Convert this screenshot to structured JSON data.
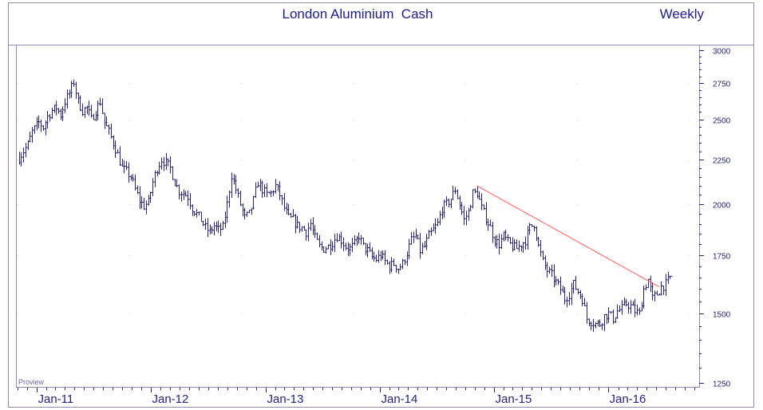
{
  "chart_data": {
    "type": "ohlc",
    "title": "London Aluminium  Cash",
    "period_label": "Weekly",
    "watermark": "Proview",
    "x_tick_labels": [
      "Jan-11",
      "Jan-12",
      "Jan-13",
      "Jan-14",
      "Jan-15",
      "Jan-16"
    ],
    "y_tick_labels": [
      "3000",
      "2750",
      "2500",
      "2250",
      "2000",
      "1750",
      "1500",
      "1250"
    ],
    "y_ticks": [
      3000,
      2750,
      2500,
      2250,
      2000,
      1750,
      1500,
      1250
    ],
    "ylim": [
      1250,
      3000
    ],
    "x_range": [
      "2010-11",
      "2016-06"
    ],
    "y_scale": "log",
    "grid": "dotted",
    "colors": {
      "bars": "#24247a",
      "text": "#1c1c8a",
      "frame": "#8a8ab8",
      "trendline": "#ff5a5a"
    },
    "price_series": [
      [
        "2010-11-05",
        2260
      ],
      [
        "2010-11-19",
        2300
      ],
      [
        "2010-12-03",
        2340
      ],
      [
        "2010-12-17",
        2420
      ],
      [
        "2011-01-07",
        2480
      ],
      [
        "2011-01-21",
        2450
      ],
      [
        "2011-02-04",
        2520
      ],
      [
        "2011-02-18",
        2560
      ],
      [
        "2011-03-04",
        2580
      ],
      [
        "2011-03-18",
        2530
      ],
      [
        "2011-04-01",
        2620
      ],
      [
        "2011-04-15",
        2680
      ],
      [
        "2011-04-29",
        2760
      ],
      [
        "2011-05-13",
        2620
      ],
      [
        "2011-05-27",
        2560
      ],
      [
        "2011-06-10",
        2580
      ],
      [
        "2011-06-24",
        2500
      ],
      [
        "2011-07-08",
        2560
      ],
      [
        "2011-07-22",
        2620
      ],
      [
        "2011-08-05",
        2480
      ],
      [
        "2011-08-19",
        2420
      ],
      [
        "2011-09-02",
        2350
      ],
      [
        "2011-09-16",
        2280
      ],
      [
        "2011-09-30",
        2200
      ],
      [
        "2011-10-14",
        2180
      ],
      [
        "2011-10-28",
        2150
      ],
      [
        "2011-11-11",
        2080
      ],
      [
        "2011-11-25",
        2020
      ],
      [
        "2011-12-09",
        1990
      ],
      [
        "2011-12-23",
        2010
      ],
      [
        "2012-01-06",
        2120
      ],
      [
        "2012-01-20",
        2200
      ],
      [
        "2012-02-03",
        2250
      ],
      [
        "2012-02-17",
        2230
      ],
      [
        "2012-03-02",
        2200
      ],
      [
        "2012-03-16",
        2120
      ],
      [
        "2012-03-30",
        2070
      ],
      [
        "2012-04-13",
        2060
      ],
      [
        "2012-04-27",
        2040
      ],
      [
        "2012-05-11",
        1980
      ],
      [
        "2012-05-25",
        1950
      ],
      [
        "2012-06-08",
        1920
      ],
      [
        "2012-06-22",
        1880
      ],
      [
        "2012-07-06",
        1860
      ],
      [
        "2012-07-20",
        1890
      ],
      [
        "2012-08-03",
        1870
      ],
      [
        "2012-08-17",
        1880
      ],
      [
        "2012-08-31",
        2000
      ],
      [
        "2012-09-14",
        2160
      ],
      [
        "2012-09-28",
        2080
      ],
      [
        "2012-10-12",
        2000
      ],
      [
        "2012-10-26",
        1930
      ],
      [
        "2012-11-09",
        1950
      ],
      [
        "2012-11-23",
        2020
      ],
      [
        "2012-12-07",
        2120
      ],
      [
        "2012-12-21",
        2080
      ],
      [
        "2013-01-04",
        2050
      ],
      [
        "2013-01-18",
        2060
      ],
      [
        "2013-02-01",
        2100
      ],
      [
        "2013-02-15",
        2050
      ],
      [
        "2013-03-01",
        1980
      ],
      [
        "2013-03-15",
        1930
      ],
      [
        "2013-03-29",
        1920
      ],
      [
        "2013-04-12",
        1890
      ],
      [
        "2013-04-26",
        1880
      ],
      [
        "2013-05-10",
        1860
      ],
      [
        "2013-05-24",
        1900
      ],
      [
        "2013-06-07",
        1830
      ],
      [
        "2013-06-21",
        1790
      ],
      [
        "2013-07-05",
        1780
      ],
      [
        "2013-07-19",
        1790
      ],
      [
        "2013-08-02",
        1810
      ],
      [
        "2013-08-16",
        1840
      ],
      [
        "2013-08-30",
        1820
      ],
      [
        "2013-09-13",
        1790
      ],
      [
        "2013-09-27",
        1780
      ],
      [
        "2013-10-11",
        1800
      ],
      [
        "2013-10-25",
        1840
      ],
      [
        "2013-11-08",
        1790
      ],
      [
        "2013-11-22",
        1770
      ],
      [
        "2013-12-06",
        1740
      ],
      [
        "2013-12-20",
        1730
      ],
      [
        "2014-01-03",
        1750
      ],
      [
        "2014-01-17",
        1720
      ],
      [
        "2014-01-31",
        1700
      ],
      [
        "2014-02-14",
        1710
      ],
      [
        "2014-02-28",
        1690
      ],
      [
        "2014-03-14",
        1710
      ],
      [
        "2014-03-28",
        1760
      ],
      [
        "2014-04-11",
        1820
      ],
      [
        "2014-04-25",
        1840
      ],
      [
        "2014-05-09",
        1770
      ],
      [
        "2014-05-23",
        1790
      ],
      [
        "2014-06-06",
        1840
      ],
      [
        "2014-06-20",
        1870
      ],
      [
        "2014-07-04",
        1900
      ],
      [
        "2014-07-18",
        1980
      ],
      [
        "2014-08-01",
        2000
      ],
      [
        "2014-08-15",
        2030
      ],
      [
        "2014-08-29",
        2080
      ],
      [
        "2014-09-12",
        2000
      ],
      [
        "2014-09-26",
        1920
      ],
      [
        "2014-10-10",
        1960
      ],
      [
        "2014-10-24",
        2060
      ],
      [
        "2014-11-07",
        2060
      ],
      [
        "2014-11-21",
        1980
      ],
      [
        "2014-12-05",
        1930
      ],
      [
        "2014-12-19",
        1880
      ],
      [
        "2015-01-02",
        1820
      ],
      [
        "2015-01-16",
        1800
      ],
      [
        "2015-01-30",
        1840
      ],
      [
        "2015-02-13",
        1810
      ],
      [
        "2015-02-27",
        1790
      ],
      [
        "2015-03-13",
        1780
      ],
      [
        "2015-03-27",
        1800
      ],
      [
        "2015-04-10",
        1820
      ],
      [
        "2015-04-24",
        1880
      ],
      [
        "2015-05-08",
        1900
      ],
      [
        "2015-05-22",
        1790
      ],
      [
        "2015-06-05",
        1720
      ],
      [
        "2015-06-19",
        1680
      ],
      [
        "2015-07-03",
        1660
      ],
      [
        "2015-07-17",
        1630
      ],
      [
        "2015-07-31",
        1600
      ],
      [
        "2015-08-14",
        1560
      ],
      [
        "2015-08-28",
        1580
      ],
      [
        "2015-09-11",
        1620
      ],
      [
        "2015-09-25",
        1590
      ],
      [
        "2015-10-09",
        1560
      ],
      [
        "2015-10-23",
        1480
      ],
      [
        "2015-11-06",
        1470
      ],
      [
        "2015-11-20",
        1460
      ],
      [
        "2015-12-04",
        1460
      ],
      [
        "2015-12-18",
        1490
      ],
      [
        "2016-01-01",
        1500
      ],
      [
        "2016-01-15",
        1480
      ],
      [
        "2016-01-29",
        1510
      ],
      [
        "2016-02-12",
        1520
      ],
      [
        "2016-02-26",
        1540
      ],
      [
        "2016-03-11",
        1530
      ],
      [
        "2016-03-25",
        1510
      ],
      [
        "2016-04-08",
        1500
      ],
      [
        "2016-04-22",
        1600
      ],
      [
        "2016-05-06",
        1640
      ],
      [
        "2016-05-20",
        1560
      ],
      [
        "2016-06-03",
        1580
      ],
      [
        "2016-06-17",
        1610
      ],
      [
        "2016-07-01",
        1620
      ],
      [
        "2016-07-15",
        1650
      ]
    ],
    "trendline": {
      "from": [
        "2014-11-07",
        2100
      ],
      "to": [
        "2016-06-10",
        1610
      ]
    }
  }
}
